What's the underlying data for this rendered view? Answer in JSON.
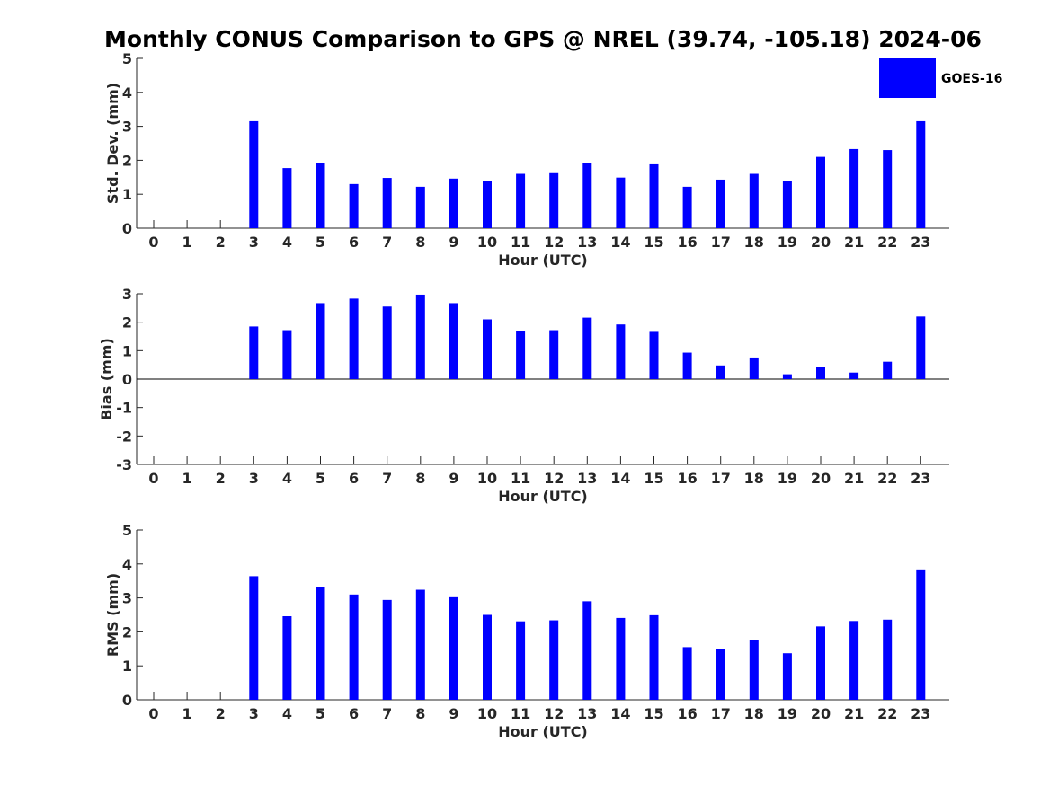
{
  "title": "Monthly CONUS Comparison to GPS @ NREL (39.74, -105.18) 2024-06",
  "legend": {
    "label": "GOES-16",
    "color": "#0000ff",
    "placement": "top-right"
  },
  "chart_data": [
    {
      "type": "bar",
      "xlabel": "Hour (UTC)",
      "ylabel": "Std. Dev. (mm)",
      "ylim": [
        0,
        5
      ],
      "yticks": [
        0,
        1,
        2,
        3,
        4,
        5
      ],
      "categories": [
        "0",
        "1",
        "2",
        "3",
        "4",
        "5",
        "6",
        "7",
        "8",
        "9",
        "10",
        "11",
        "12",
        "13",
        "14",
        "15",
        "16",
        "17",
        "18",
        "19",
        "20",
        "21",
        "22",
        "23"
      ],
      "series": [
        {
          "name": "GOES-16",
          "color": "#0000ff",
          "values": [
            null,
            null,
            null,
            3.15,
            1.77,
            1.93,
            1.3,
            1.48,
            1.22,
            1.46,
            1.38,
            1.6,
            1.62,
            1.93,
            1.49,
            1.88,
            1.22,
            1.43,
            1.6,
            1.38,
            2.1,
            2.33,
            2.3,
            3.15
          ]
        }
      ]
    },
    {
      "type": "bar",
      "xlabel": "Hour (UTC)",
      "ylabel": "Bias (mm)",
      "ylim": [
        -3,
        3
      ],
      "yticks": [
        -3,
        -2,
        -1,
        0,
        1,
        2,
        3
      ],
      "categories": [
        "0",
        "1",
        "2",
        "3",
        "4",
        "5",
        "6",
        "7",
        "8",
        "9",
        "10",
        "11",
        "12",
        "13",
        "14",
        "15",
        "16",
        "17",
        "18",
        "19",
        "20",
        "21",
        "22",
        "23"
      ],
      "series": [
        {
          "name": "GOES-16",
          "color": "#0000ff",
          "values": [
            null,
            null,
            null,
            1.85,
            1.72,
            2.67,
            2.83,
            2.55,
            2.97,
            2.67,
            2.1,
            1.68,
            1.72,
            2.16,
            1.92,
            1.66,
            0.93,
            0.48,
            0.76,
            0.17,
            0.42,
            0.23,
            0.61,
            2.2
          ]
        }
      ]
    },
    {
      "type": "bar",
      "xlabel": "Hour (UTC)",
      "ylabel": "RMS (mm)",
      "ylim": [
        0,
        5
      ],
      "yticks": [
        0,
        1,
        2,
        3,
        4,
        5
      ],
      "categories": [
        "0",
        "1",
        "2",
        "3",
        "4",
        "5",
        "6",
        "7",
        "8",
        "9",
        "10",
        "11",
        "12",
        "13",
        "14",
        "15",
        "16",
        "17",
        "18",
        "19",
        "20",
        "21",
        "22",
        "23"
      ],
      "series": [
        {
          "name": "GOES-16",
          "color": "#0000ff",
          "values": [
            null,
            null,
            null,
            3.64,
            2.46,
            3.32,
            3.1,
            2.94,
            3.24,
            3.02,
            2.5,
            2.31,
            2.34,
            2.9,
            2.41,
            2.49,
            1.55,
            1.5,
            1.75,
            1.37,
            2.16,
            2.32,
            2.36,
            3.84
          ]
        }
      ]
    }
  ]
}
